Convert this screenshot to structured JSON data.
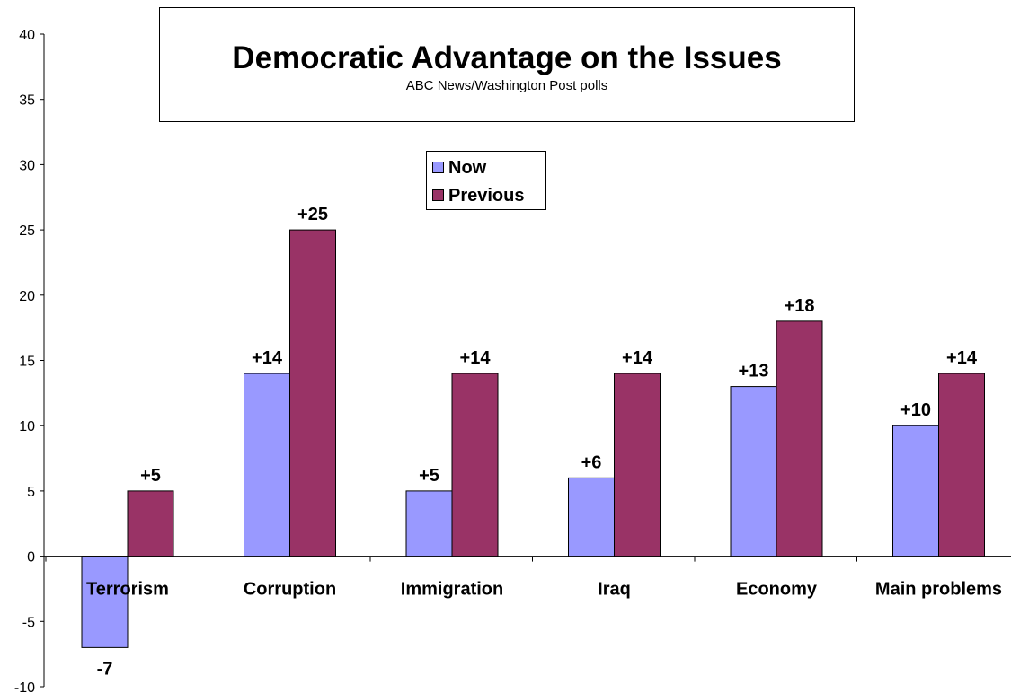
{
  "chart_data": {
    "type": "bar",
    "title": "Democratic Advantage on the Issues",
    "subtitle": "ABC News/Washington Post polls",
    "categories": [
      "Terrorism",
      "Corruption",
      "Immigration",
      "Iraq",
      "Economy",
      "Main problems"
    ],
    "series": [
      {
        "name": "Now",
        "color": "#9999ff",
        "values": [
          -7,
          14,
          5,
          6,
          13,
          10
        ],
        "labels": [
          "-7",
          "+14",
          "+5",
          "+6",
          "+13",
          "+10"
        ]
      },
      {
        "name": "Previous",
        "color": "#993366",
        "values": [
          5,
          25,
          14,
          14,
          18,
          14
        ],
        "labels": [
          "+5",
          "+25",
          "+14",
          "+14",
          "+18",
          "+14"
        ]
      }
    ],
    "yticks": [
      "40",
      "35",
      "30",
      "25",
      "20",
      "15",
      "10",
      "5",
      "0",
      "-5",
      "-10"
    ],
    "ylim": [
      -10,
      40
    ],
    "grid": false,
    "legend": "inside-top-center"
  }
}
